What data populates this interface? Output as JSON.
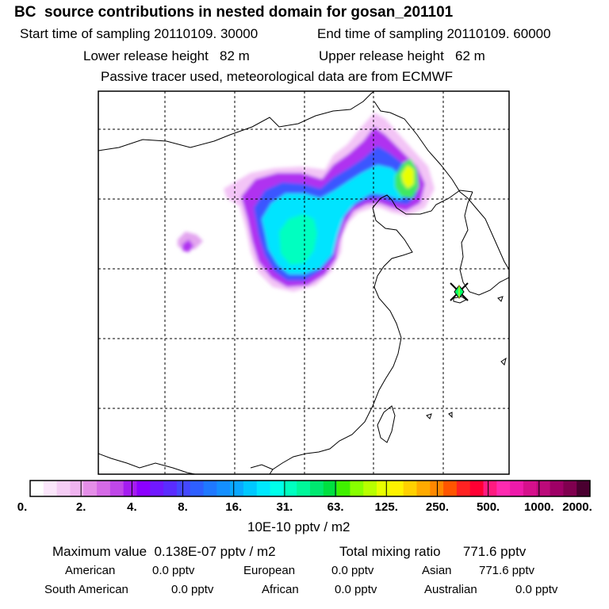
{
  "title": "BC  source contributions in nested domain for gosan_201101",
  "start_time": "Start time of sampling 20110109. 30000",
  "end_time": "End time of sampling 20110109. 60000",
  "lower_height": "Lower release height   82 m",
  "upper_height": "Upper release height   62 m",
  "tracer_note": "Passive tracer used, meteorological data are from ECMWF",
  "colorbar": {
    "ticks": [
      "0.",
      "2.",
      "4.",
      "8.",
      "16.",
      "31.",
      "63.",
      "125.",
      "250.",
      "500.",
      "1000.",
      "2000."
    ],
    "unit": "10E-10 pptv / m2",
    "colors": [
      "#ffffff",
      "#fbe6fb",
      "#f5cdf5",
      "#efb3ef",
      "#e48ee8",
      "#d56ae6",
      "#c047e8",
      "#a51cf0",
      "#8c00ff",
      "#7018ff",
      "#5a2cff",
      "#4448ff",
      "#2e5fff",
      "#1f78ff",
      "#148fff",
      "#0aa8ff",
      "#00c8ff",
      "#00e8ff",
      "#00ffea",
      "#00ffc0",
      "#00f79a",
      "#00e870",
      "#00e040",
      "#40f000",
      "#88ff00",
      "#b8ff00",
      "#e8ff00",
      "#fff200",
      "#ffd000",
      "#ffaa00",
      "#ff8800",
      "#ff5500",
      "#ff2222",
      "#ff0033",
      "#ff1a80",
      "#ff2ab0",
      "#ee1aaa",
      "#d6108c",
      "#bb0a7a",
      "#9e0066",
      "#80004f",
      "#4a0030"
    ]
  },
  "summary": {
    "maximum": "Maximum value  0.138E-07 pptv / m2",
    "total": "Total mixing ratio      771.6 pptv",
    "american_label": "American",
    "american_value": "0.0 pptv",
    "european_label": "European",
    "european_value": "0.0 pptv",
    "asian_label": "Asian",
    "asian_value": "771.6 pptv",
    "south_american_label": "South American",
    "south_american_value": "0.0 pptv",
    "african_label": "African",
    "african_value": "0.0 pptv",
    "australian_label": "Australian",
    "australian_value": "0.0 pptv"
  },
  "colors": {
    "frame": "#000000",
    "grid": "#000000",
    "marker_fill": "#00ff66",
    "marker_outline": "#000000"
  }
}
